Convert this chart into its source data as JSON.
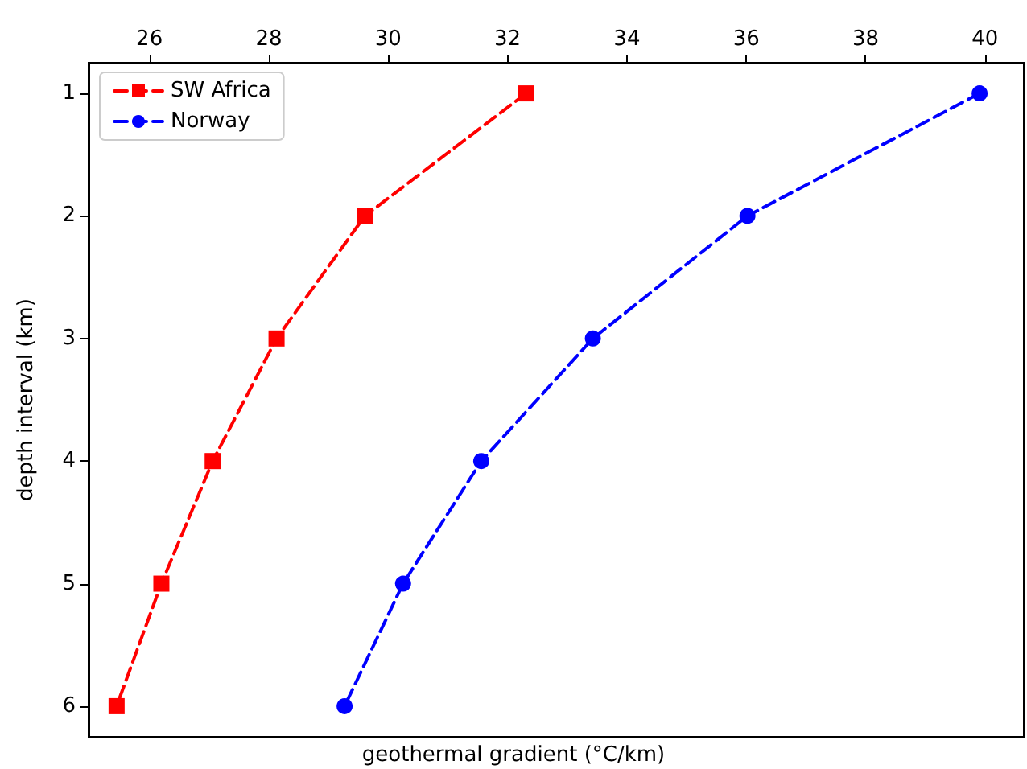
{
  "chart_data": {
    "type": "line",
    "xlabel": "geothermal gradient (°C/km)",
    "ylabel": "depth interval (km)",
    "xlim": [
      24.98,
      40.65
    ],
    "xticks": [
      26,
      28,
      30,
      32,
      34,
      36,
      38,
      40
    ],
    "ylim": [
      6.25,
      0.75
    ],
    "yticks": [
      1,
      2,
      3,
      4,
      5,
      6
    ],
    "line_style": "dashed",
    "legend": "top left",
    "grid": false,
    "series": [
      {
        "name": "SW Africa",
        "color": "#ff0000",
        "marker": "square",
        "x": [
          32.31,
          29.61,
          28.13,
          27.06,
          26.2,
          25.45
        ],
        "values": [
          1,
          2,
          3,
          4,
          5,
          6
        ]
      },
      {
        "name": "Norway",
        "color": "#0000ff",
        "marker": "circle",
        "x": [
          39.91,
          36.02,
          33.43,
          31.56,
          30.25,
          29.27
        ],
        "values": [
          1,
          2,
          3,
          4,
          5,
          6
        ]
      }
    ]
  }
}
